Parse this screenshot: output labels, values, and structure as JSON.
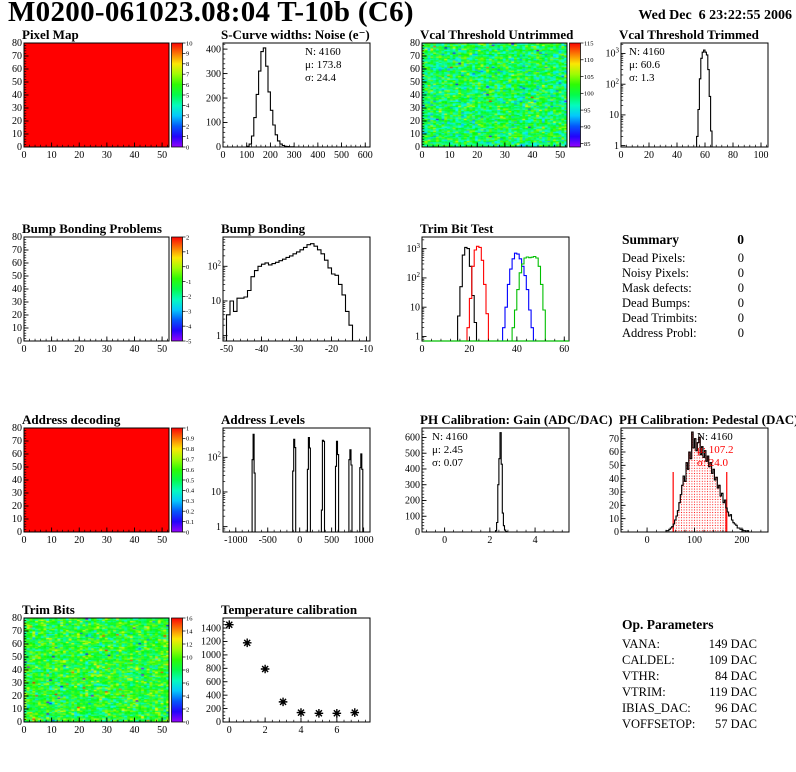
{
  "header": {
    "title": "M0200-061023.08:04 T-10b (C6)",
    "date": "Wed Dec  6 23:22:55 2006"
  },
  "summary": {
    "title": "Summary",
    "title_value": "0",
    "rows": [
      {
        "label": "Dead Pixels:",
        "value": "0"
      },
      {
        "label": "Noisy Pixels:",
        "value": "0"
      },
      {
        "label": "Mask defects:",
        "value": "0"
      },
      {
        "label": "Dead Bumps:",
        "value": "0"
      },
      {
        "label": "Dead Trimbits:",
        "value": "0"
      },
      {
        "label": "Address Probl:",
        "value": "0"
      }
    ]
  },
  "op_parameters": {
    "title": "Op. Parameters",
    "rows": [
      {
        "label": "VANA:",
        "value": "149 DAC"
      },
      {
        "label": "CALDEL:",
        "value": "109 DAC"
      },
      {
        "label": "VTHR:",
        "value": "84 DAC"
      },
      {
        "label": "VTRIM:",
        "value": "119 DAC"
      },
      {
        "label": "IBIAS_DAC:",
        "value": "96 DAC"
      },
      {
        "label": "VOFFSETOP:",
        "value": "57 DAC"
      }
    ]
  },
  "chart_data": [
    {
      "id": "pixel_map",
      "title": "Pixel Map",
      "type": "heatmap",
      "x_range": [
        0,
        52.5
      ],
      "y_range": [
        0,
        80
      ],
      "x_ticks": [
        0,
        10,
        20,
        30,
        40,
        50
      ],
      "y_ticks": [
        0,
        10,
        20,
        30,
        40,
        50,
        60,
        70,
        80
      ],
      "x_minor": 2,
      "y_minor": 2,
      "heat": {
        "variant": "solid",
        "color": "#ff0000"
      },
      "colorbar": {
        "range": [
          0,
          10
        ],
        "labels": [
          10,
          9,
          8,
          7,
          6,
          5,
          4,
          3,
          2,
          1,
          0
        ]
      }
    },
    {
      "id": "scurve_noise",
      "title": "S-Curve widths: Noise (e⁻)",
      "type": "hist",
      "x_range": [
        0,
        620
      ],
      "y_range": [
        0,
        425
      ],
      "x_ticks": [
        0,
        100,
        200,
        300,
        400,
        500,
        600
      ],
      "y_ticks": [
        0,
        100,
        200,
        300,
        400
      ],
      "x_minor": 20,
      "y_minor": 20,
      "series": [
        {
          "color": "#000000",
          "x0": 100,
          "dx": 10,
          "counts": [
            3,
            12,
            45,
            120,
            215,
            310,
            390,
            405,
            330,
            225,
            150,
            90,
            50,
            25,
            12,
            6,
            3,
            2,
            1,
            1
          ]
        }
      ],
      "stats": {
        "x": 106,
        "y": 25,
        "lines": [
          {
            "t": "N: 4160"
          },
          {
            "t": "μ: 173.8"
          },
          {
            "t": "σ: 24.4"
          }
        ]
      }
    },
    {
      "id": "vcal_untrimmed",
      "title": "Vcal Threshold Untrimmed",
      "type": "heatmap",
      "x_range": [
        0,
        52.5
      ],
      "y_range": [
        0,
        80
      ],
      "x_ticks": [
        0,
        10,
        20,
        30,
        40,
        50
      ],
      "y_ticks": [
        0,
        10,
        20,
        30,
        40,
        50,
        60,
        70,
        80
      ],
      "x_minor": 2,
      "y_minor": 2,
      "heat": {
        "variant": "noise",
        "nx": 52,
        "ny": 80,
        "seed": 1234,
        "mean": 100,
        "sigma": 3.2,
        "outlier_prob": 0.02,
        "range": [
          85,
          115
        ]
      },
      "colorbar": {
        "range": [
          84,
          115
        ],
        "labels": [
          115,
          110,
          105,
          100,
          95,
          90,
          85
        ]
      }
    },
    {
      "id": "vcal_trimmed",
      "title": "Vcal Threshold Trimmed",
      "type": "hist",
      "ylog": true,
      "x_range": [
        0,
        105
      ],
      "y_range": [
        0.9,
        2200
      ],
      "x_ticks": [
        0,
        20,
        40,
        60,
        80,
        100
      ],
      "y_ticks": [
        1,
        10,
        100,
        1000
      ],
      "x_minor": 4,
      "series": [
        {
          "color": "#000000",
          "x0": 54,
          "dx": 1,
          "counts": [
            2,
            15,
            150,
            700,
            1100,
            1300,
            1100,
            900,
            300,
            40,
            3
          ]
        }
      ],
      "stats": {
        "x": 32,
        "y": 25,
        "lines": [
          {
            "t": "N: 4160"
          },
          {
            "t": "μ: 60.6"
          },
          {
            "t": "σ: 1.3"
          }
        ]
      }
    },
    {
      "id": "bump_problems",
      "title": "Bump Bonding Problems",
      "type": "heatmap",
      "x_range": [
        0,
        52.5
      ],
      "y_range": [
        0,
        80
      ],
      "x_ticks": [
        0,
        10,
        20,
        30,
        40,
        50
      ],
      "y_ticks": [
        0,
        10,
        20,
        30,
        40,
        50,
        60,
        70,
        80
      ],
      "x_minor": 2,
      "y_minor": 2,
      "heat": {
        "variant": "empty"
      },
      "colorbar": {
        "range": [
          -5,
          2
        ],
        "labels": [
          2,
          1,
          0,
          -1,
          -2,
          -3,
          -4,
          -5
        ]
      }
    },
    {
      "id": "bump_bonding",
      "title": "Bump Bonding",
      "type": "hist",
      "ylog": true,
      "x_range": [
        -51,
        -9
      ],
      "y_range": [
        0.7,
        700
      ],
      "x_ticks": [
        -50,
        -40,
        -30,
        -20,
        -10
      ],
      "y_ticks": [
        1,
        10,
        100
      ],
      "x_minor": 2,
      "series": [
        {
          "color": "#000000",
          "x0": -50,
          "dx": 1,
          "counts": [
            4,
            10,
            5,
            12,
            12,
            13,
            20,
            50,
            75,
            100,
            115,
            125,
            110,
            120,
            130,
            145,
            160,
            180,
            200,
            230,
            260,
            300,
            350,
            420,
            450,
            380,
            300,
            230,
            150,
            90,
            60,
            55,
            30,
            15,
            5,
            2
          ]
        }
      ]
    },
    {
      "id": "trim_bit_test",
      "title": "Trim Bit Test",
      "type": "hist",
      "ylog": true,
      "x_range": [
        0,
        62
      ],
      "y_range": [
        0.7,
        2500
      ],
      "x_ticks": [
        0,
        20,
        40,
        60
      ],
      "y_ticks": [
        1,
        10,
        100,
        1000
      ],
      "x_minor": 4,
      "axis_overlay_color": "#00bf00",
      "series": [
        {
          "color": "#000000",
          "x0": 15,
          "dx": 1,
          "counts": [
            5,
            50,
            600,
            1100,
            1000,
            250,
            25,
            3
          ]
        },
        {
          "color": "#ff0000",
          "x0": 19,
          "dx": 1,
          "counts": [
            2,
            20,
            250,
            900,
            1200,
            1100,
            400,
            60,
            6
          ]
        },
        {
          "color": "#0000ff",
          "x0": 34,
          "dx": 1,
          "counts": [
            2,
            10,
            60,
            200,
            450,
            700,
            650,
            450,
            250,
            120,
            40,
            8,
            2
          ]
        },
        {
          "color": "#00bf00",
          "x0": 38,
          "dx": 1,
          "counts": [
            2,
            8,
            40,
            150,
            300,
            480,
            520,
            490,
            510,
            540,
            480,
            250,
            60,
            8
          ]
        }
      ]
    },
    {
      "id": "address_decoding",
      "title": "Address decoding",
      "type": "heatmap",
      "x_range": [
        0,
        52.5
      ],
      "y_range": [
        0,
        80
      ],
      "x_ticks": [
        0,
        10,
        20,
        30,
        40,
        50
      ],
      "y_ticks": [
        0,
        10,
        20,
        30,
        40,
        50,
        60,
        70,
        80
      ],
      "x_minor": 2,
      "y_minor": 2,
      "heat": {
        "variant": "solid",
        "color": "#ff0000"
      },
      "colorbar": {
        "range": [
          0,
          1
        ],
        "labels": [
          1,
          0.9,
          0.8,
          0.7,
          0.6,
          0.5,
          0.4,
          0.3,
          0.2,
          0.1,
          0
        ]
      }
    },
    {
      "id": "address_levels",
      "title": "Address Levels",
      "type": "hist",
      "ylog": true,
      "x_range": [
        -1200,
        1100
      ],
      "y_range": [
        0.7,
        700
      ],
      "x_ticks": [
        -1000,
        -500,
        0,
        500,
        1000
      ],
      "y_ticks": [
        1,
        10,
        100
      ],
      "x_minor": 100,
      "series": [
        {
          "color": "#000000",
          "x0": -745,
          "dx": 16,
          "counts": [
            85,
            460,
            35
          ]
        },
        {
          "color": "#000000",
          "x0": -110,
          "dx": 16,
          "counts": [
            40,
            330,
            190
          ]
        },
        {
          "color": "#000000",
          "x0": 120,
          "dx": 16,
          "counts": [
            45,
            370,
            185
          ]
        },
        {
          "color": "#000000",
          "x0": 340,
          "dx": 16,
          "counts": [
            3,
            310,
            290
          ]
        },
        {
          "color": "#000000",
          "x0": 560,
          "dx": 16,
          "counts": [
            55,
            290,
            120
          ]
        },
        {
          "color": "#000000",
          "x0": 770,
          "dx": 16,
          "counts": [
            85,
            165,
            60
          ]
        },
        {
          "color": "#000000",
          "x0": 940,
          "dx": 16,
          "counts": [
            50,
            125,
            45
          ]
        }
      ]
    },
    {
      "id": "ph_gain",
      "title": "PH Calibration: Gain (ADC/DAC)",
      "type": "hist",
      "x_range": [
        -1,
        5.5
      ],
      "y_range": [
        0,
        660
      ],
      "x_ticks": [
        0,
        2,
        4
      ],
      "y_ticks": [
        0,
        100,
        200,
        300,
        400,
        500,
        600
      ],
      "x_minor": 0.4,
      "y_minor": 20,
      "series": [
        {
          "color": "#000000",
          "x0": 2.25,
          "dx": 0.05,
          "counts": [
            8,
            60,
            300,
            465,
            630,
            430,
            120,
            40,
            12,
            3
          ]
        }
      ],
      "stats": {
        "x": 34,
        "y": 25,
        "lines": [
          {
            "t": "N: 4160"
          },
          {
            "t": "μ: 2.45"
          },
          {
            "t": "σ: 0.07"
          }
        ]
      }
    },
    {
      "id": "ph_pedestal",
      "title": "PH Calibration: Pedestal (DAC)",
      "type": "hist",
      "x_range": [
        -55,
        255
      ],
      "y_range": [
        0,
        78
      ],
      "x_ticks": [
        0,
        100,
        200
      ],
      "y_ticks": [
        0,
        10,
        20,
        30,
        40,
        50,
        60,
        70
      ],
      "x_minor": 20,
      "y_minor": 2,
      "series": [
        {
          "color": "#000000",
          "x0": 40,
          "dx": 3,
          "counts": [
            1,
            1,
            2,
            3,
            4,
            6,
            9,
            12,
            16,
            22,
            28,
            35,
            42,
            38,
            52,
            47,
            60,
            55,
            75,
            63,
            70,
            61,
            67,
            71,
            58,
            64,
            56,
            61,
            53,
            57,
            49,
            52,
            44,
            47,
            39,
            41,
            33,
            35,
            27,
            29,
            22,
            24,
            18,
            15,
            12,
            13,
            9,
            7,
            6,
            5,
            3,
            3,
            2,
            2,
            1,
            1,
            0,
            1
          ]
        }
      ],
      "fill": {
        "pattern": "dots",
        "color": "#ff0000",
        "clip": [
          55,
          168
        ]
      },
      "vlines": {
        "color": "#ff0000",
        "items": [
          {
            "x": 55,
            "y": 45
          },
          {
            "x": 168,
            "y": 45
          }
        ]
      },
      "stats": {
        "x": 100,
        "y": 25,
        "lines": [
          {
            "t": "N: 4160",
            "c": "#000000"
          },
          {
            "t": "μ: 107.2",
            "c": "#ff0000"
          },
          {
            "t": "σ: 24.0",
            "c": "#ff0000"
          }
        ]
      }
    },
    {
      "id": "trim_bits",
      "title": "Trim Bits",
      "type": "heatmap",
      "x_range": [
        0,
        52.5
      ],
      "y_range": [
        0,
        80
      ],
      "x_ticks": [
        0,
        10,
        20,
        30,
        40,
        50
      ],
      "y_ticks": [
        0,
        10,
        20,
        30,
        40,
        50,
        60,
        70,
        80
      ],
      "x_minor": 2,
      "y_minor": 2,
      "heat": {
        "variant": "noise",
        "nx": 52,
        "ny": 80,
        "seed": 777,
        "mean": 8.8,
        "sigma": 1.6,
        "outlier_prob": 0.03,
        "range": [
          0,
          16
        ]
      },
      "colorbar": {
        "range": [
          0,
          16
        ],
        "labels": [
          16,
          14,
          12,
          10,
          8,
          6,
          4,
          2,
          0
        ]
      }
    },
    {
      "id": "temperature",
      "title": "Temperature calibration",
      "type": "scatter",
      "x_range": [
        -0.35,
        7.85
      ],
      "y_range": [
        0,
        1550
      ],
      "x_ticks": [
        0,
        2,
        4,
        6
      ],
      "y_ticks": [
        0,
        200,
        400,
        600,
        800,
        1000,
        1200,
        1400
      ],
      "x_minor": 0.4,
      "y_minor": 50,
      "marker": "asterisk",
      "points": [
        [
          0,
          1450
        ],
        [
          1,
          1180
        ],
        [
          2,
          790
        ],
        [
          3,
          300
        ],
        [
          4,
          140
        ],
        [
          5,
          130
        ],
        [
          6,
          130
        ],
        [
          7,
          140
        ]
      ]
    }
  ]
}
